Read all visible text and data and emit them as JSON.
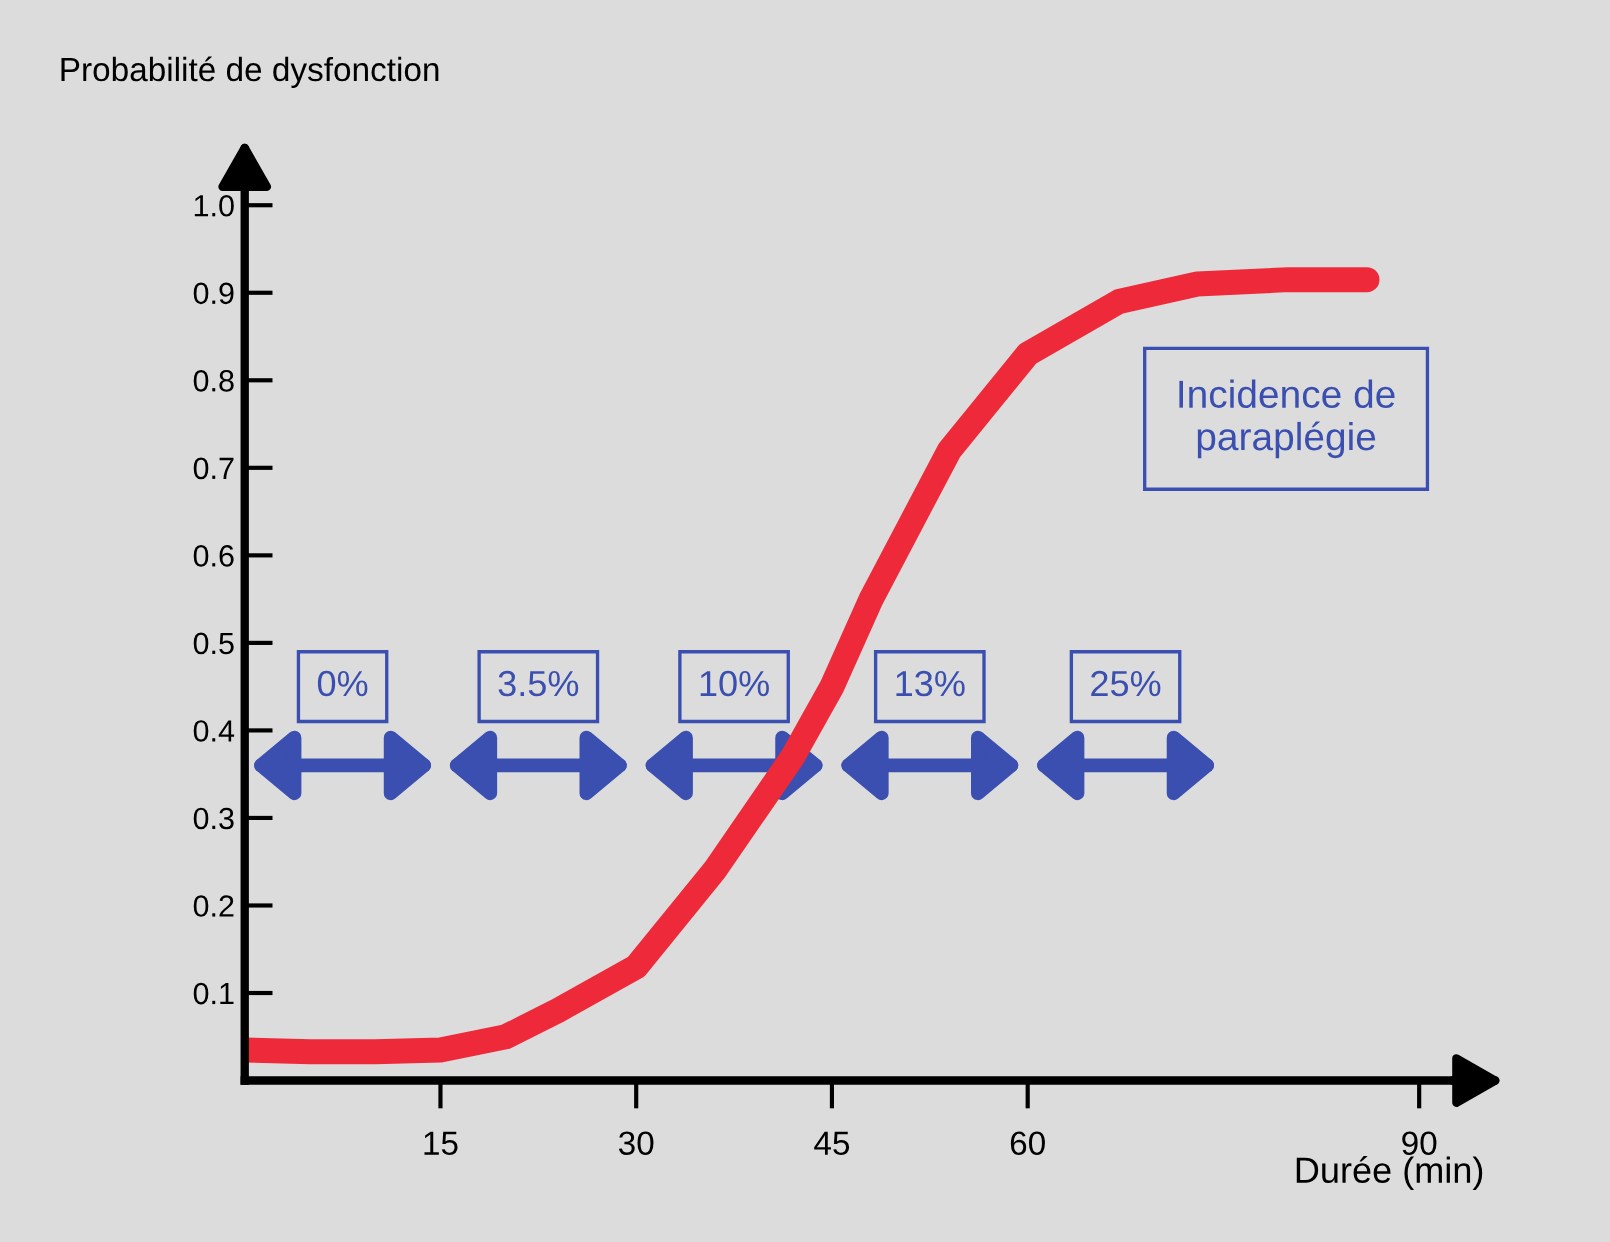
{
  "chart_data": {
    "type": "line",
    "ylabel": "Probabilité de dysfonction",
    "xlabel": "Durée (min)",
    "x": [
      0,
      5,
      10,
      15,
      20,
      24,
      30,
      36,
      42,
      45,
      48,
      54,
      60,
      67,
      73,
      80,
      86
    ],
    "series": [
      {
        "color": "#ee2a3a",
        "values": [
          0.035,
          0.033,
          0.033,
          0.035,
          0.05,
          0.08,
          0.13,
          0.24,
          0.37,
          0.45,
          0.55,
          0.72,
          0.83,
          0.89,
          0.91,
          0.915,
          0.915
        ]
      }
    ],
    "xlim": [
      0,
      95
    ],
    "ylim": [
      0,
      1.05
    ],
    "xticks": [
      15,
      30,
      45,
      60,
      90
    ],
    "yticks": [
      0.1,
      0.2,
      0.3,
      0.4,
      0.5,
      0.6,
      0.7,
      0.8,
      0.9,
      {
        "value": 1.0,
        "label": "1.0"
      }
    ],
    "grid": false,
    "legend": false,
    "line_style": "solid",
    "annotations": [
      "0%",
      "3.5%",
      "10%",
      "13%",
      "25%",
      "Incidence de\nparaplégie"
    ]
  }
}
